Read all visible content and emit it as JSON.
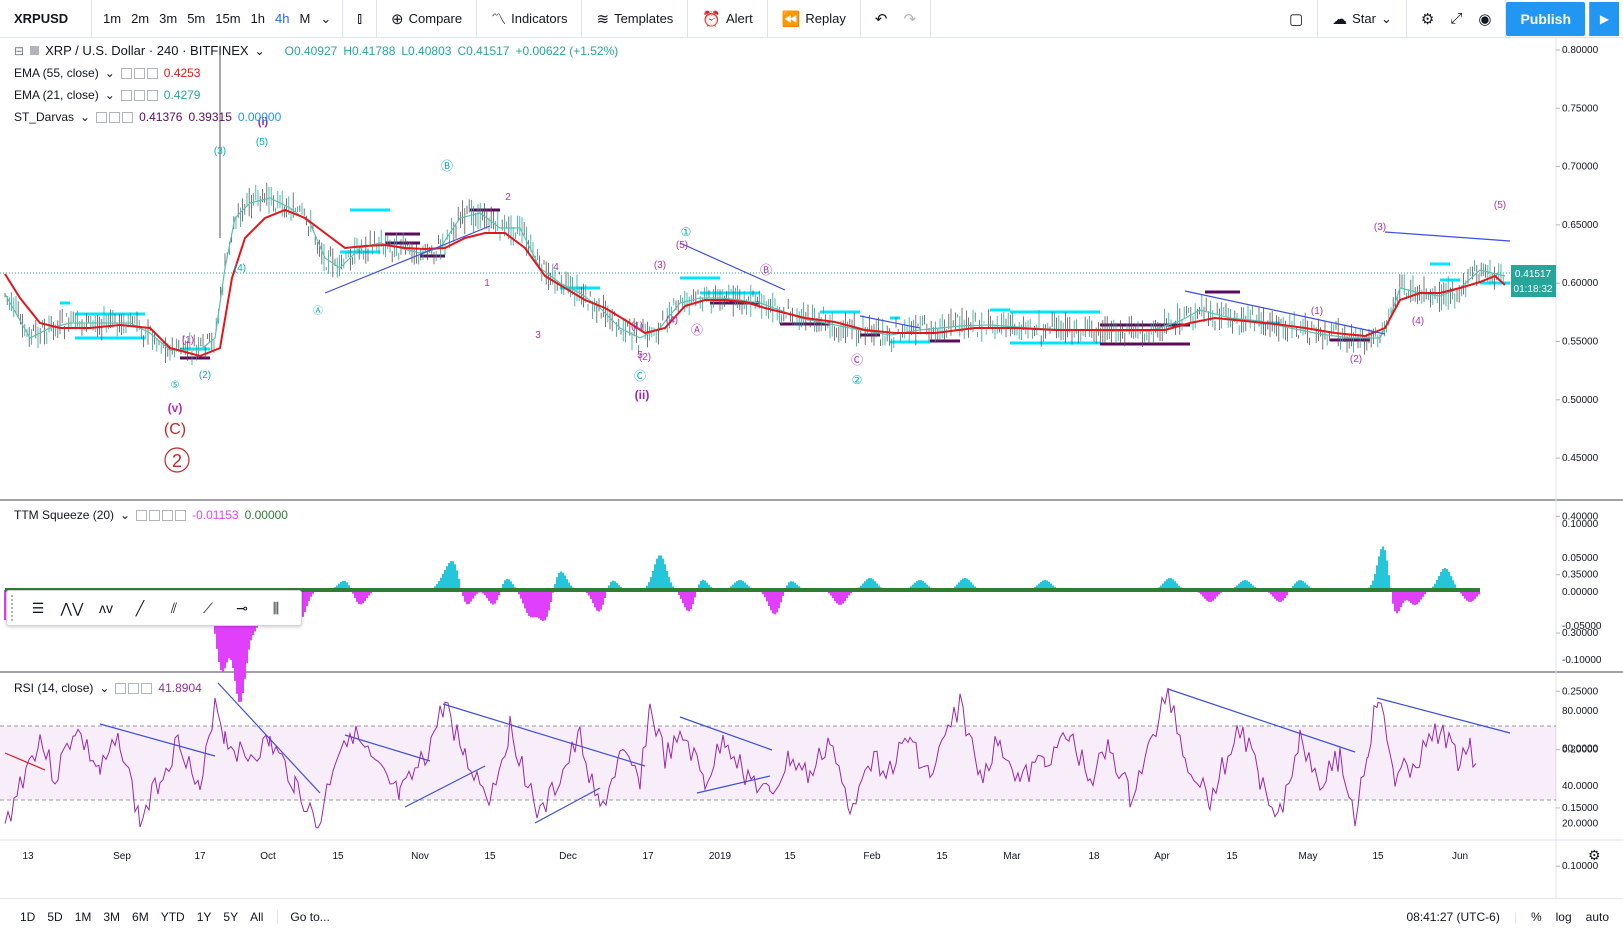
{
  "toolbar": {
    "symbol": "XRPUSD",
    "intervals": [
      "1m",
      "2m",
      "3m",
      "5m",
      "15m",
      "1h",
      "4h",
      "M"
    ],
    "active_interval": "4h",
    "compare_label": "Compare",
    "indicators_label": "Indicators",
    "templates_label": "Templates",
    "alert_label": "Alert",
    "replay_label": "Replay",
    "star_label": "Star",
    "publish_label": "Publish"
  },
  "main_legend": {
    "title": "XRP / U.S. Dollar · 240 · BITFINEX",
    "open": "O0.40927",
    "high": "H0.41788",
    "low": "L0.40803",
    "close": "C0.41517",
    "change": "+0.00622 (+1.52%)"
  },
  "indicators": {
    "ema55": {
      "name": "EMA (55, close)",
      "value": "0.4253"
    },
    "ema21": {
      "name": "EMA (21, close)",
      "value": "0.4279"
    },
    "darvas": {
      "name": "ST_Darvas",
      "v1": "0.41376",
      "v2": "0.39315",
      "v3": "0.00000"
    },
    "ttm": {
      "name": "TTM Squeeze (20)",
      "v1": "-0.01153",
      "v2": "0.00000"
    },
    "rsi": {
      "name": "RSI (14, close)",
      "value": "41.8904"
    }
  },
  "price_axis": {
    "labels": [
      "0.80000",
      "0.75000",
      "0.70000",
      "0.65000",
      "0.60000",
      "0.55000",
      "0.50000",
      "0.45000",
      "0.40000",
      "0.35000",
      "0.30000",
      "0.25000",
      "0.20000",
      "0.15000",
      "0.10000",
      "0.05000"
    ],
    "last_price": "0.41517",
    "countdown": "01:18:32"
  },
  "ttm_axis": {
    "labels": [
      "0.10000",
      "0.05000",
      "0.00000",
      "-0.05000",
      "-0.10000"
    ]
  },
  "rsi_axis": {
    "labels": [
      "80.0000",
      "60.0000",
      "40.0000",
      "20.0000"
    ]
  },
  "time_axis": {
    "labels": [
      "13",
      "Sep",
      "17",
      "Oct",
      "15",
      "Nov",
      "15",
      "Dec",
      "17",
      "2019",
      "15",
      "Feb",
      "15",
      "Mar",
      "18",
      "Apr",
      "15",
      "May",
      "15",
      "Jun"
    ]
  },
  "wave_labels": {
    "big_2": "2",
    "big_C": "(C)",
    "small_v": "(v)",
    "ii": "(ii)",
    "i_top": "(i)"
  },
  "bottom": {
    "ranges": [
      "1D",
      "5D",
      "1M",
      "3M",
      "6M",
      "YTD",
      "1Y",
      "5Y",
      "All"
    ],
    "goto": "Go to...",
    "time": "08:41:27 (UTC-6)",
    "percent": "%",
    "log": "log",
    "auto": "auto"
  },
  "colors": {
    "ema_red": "#e4161b",
    "ema_teal": "#5ebfb0",
    "darvas_cyan": "#00e5ff",
    "darvas_purple": "#5c0b5c",
    "wave_purple": "#b52fb5",
    "wave_cyan": "#00acc1",
    "trend_blue": "#3d4fe0",
    "rsi_line": "#9c27b0",
    "ttm_pos": "#26c6da",
    "ttm_neg": "#e040fb"
  }
}
